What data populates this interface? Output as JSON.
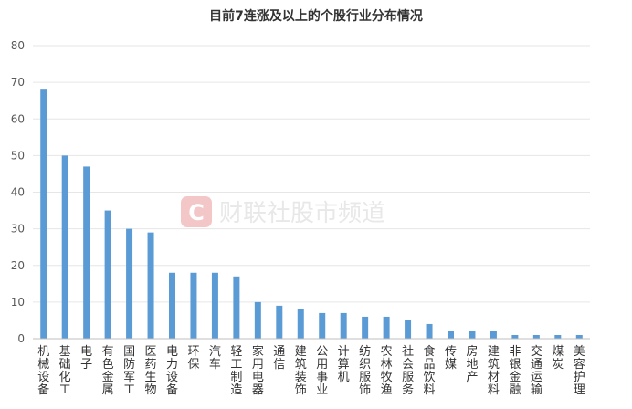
{
  "chart_data": {
    "type": "bar",
    "title": "目前7连涨及以上的个股行业分布情况",
    "categories": [
      "机械设备",
      "基础化工",
      "电子",
      "有色金属",
      "国防军工",
      "医药生物",
      "电力设备",
      "环保",
      "汽车",
      "轻工制造",
      "家用电器",
      "通信",
      "建筑装饰",
      "公用事业",
      "计算机",
      "纺织服饰",
      "农林牧渔",
      "社会服务",
      "食品饮料",
      "传媒",
      "房地产",
      "建筑材料",
      "非银金融",
      "交通运输",
      "煤炭",
      "美容护理"
    ],
    "values": [
      68,
      50,
      47,
      35,
      30,
      29,
      18,
      18,
      18,
      17,
      10,
      9,
      8,
      7,
      7,
      6,
      6,
      5,
      4,
      2,
      2,
      2,
      1,
      1,
      1,
      1
    ],
    "ylim": [
      0,
      80
    ],
    "yticks": [
      0,
      10,
      20,
      30,
      40,
      50,
      60,
      70,
      80
    ],
    "grid": true,
    "bar_color": "#5b9bd5"
  },
  "watermark": {
    "logo_letter": "C",
    "text": "财联社股市频道",
    "color": "#f3c7c7"
  }
}
